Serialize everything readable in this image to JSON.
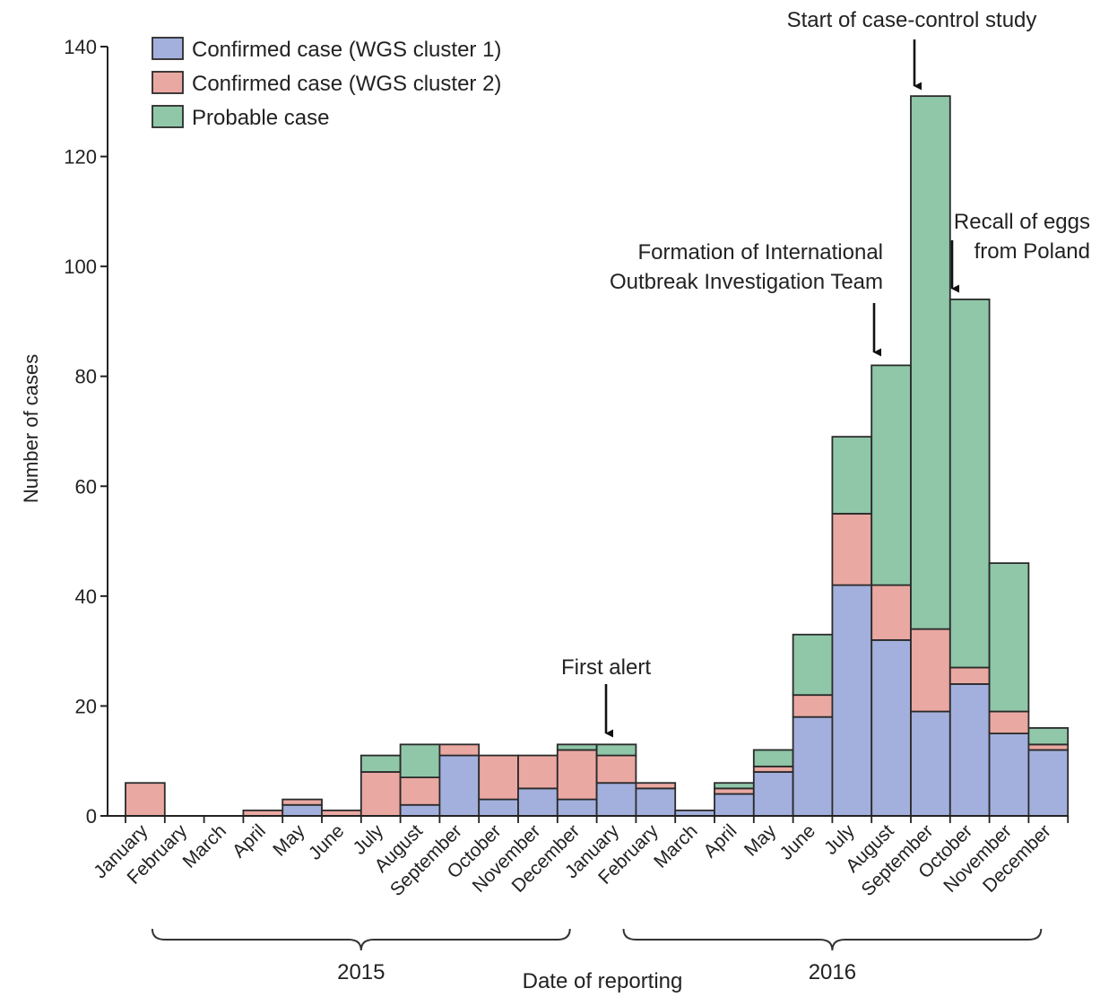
{
  "chart_data": {
    "type": "bar",
    "stacked": true,
    "title": "",
    "xlabel": "Date of reporting",
    "ylabel": "Number of cases",
    "ylim": [
      0,
      140
    ],
    "yticks": [
      0,
      20,
      40,
      60,
      80,
      100,
      120,
      140
    ],
    "grid": false,
    "legend_position": "top-left",
    "categories": [
      "January",
      "February",
      "March",
      "April",
      "May",
      "June",
      "July",
      "August",
      "September",
      "October",
      "November",
      "December",
      "January",
      "February",
      "March",
      "April",
      "May",
      "June",
      "July",
      "August",
      "September",
      "October",
      "November",
      "December"
    ],
    "years": [
      {
        "label": "2015",
        "from": 0,
        "to": 11
      },
      {
        "label": "2016",
        "from": 12,
        "to": 23
      }
    ],
    "series": [
      {
        "name": "Confirmed case (WGS cluster 1)",
        "color": "#a3b0dd",
        "values": [
          0,
          0,
          0,
          0,
          2,
          0,
          0,
          2,
          11,
          3,
          5,
          3,
          6,
          5,
          1,
          4,
          8,
          18,
          42,
          32,
          19,
          24,
          15,
          12
        ]
      },
      {
        "name": "Confirmed case (WGS cluster 2)",
        "color": "#eaa8a2",
        "values": [
          6,
          0,
          0,
          1,
          1,
          1,
          8,
          5,
          2,
          8,
          6,
          9,
          5,
          1,
          0,
          1,
          1,
          4,
          13,
          10,
          15,
          3,
          4,
          1
        ]
      },
      {
        "name": "Probable case",
        "color": "#8fc7a8",
        "values": [
          0,
          0,
          0,
          0,
          0,
          0,
          3,
          6,
          0,
          0,
          0,
          1,
          2,
          0,
          0,
          1,
          3,
          11,
          14,
          40,
          97,
          67,
          27,
          3
        ]
      }
    ],
    "annotations": [
      {
        "text_lines": [
          "First alert"
        ],
        "index": 12
      },
      {
        "text_lines": [
          "Formation of International",
          "Outbreak Investigation Team"
        ],
        "index": 19
      },
      {
        "text_lines": [
          "Start of case-control study"
        ],
        "index": 20
      },
      {
        "text_lines": [
          "Recall of eggs",
          "from Poland"
        ],
        "index": 21
      }
    ]
  }
}
